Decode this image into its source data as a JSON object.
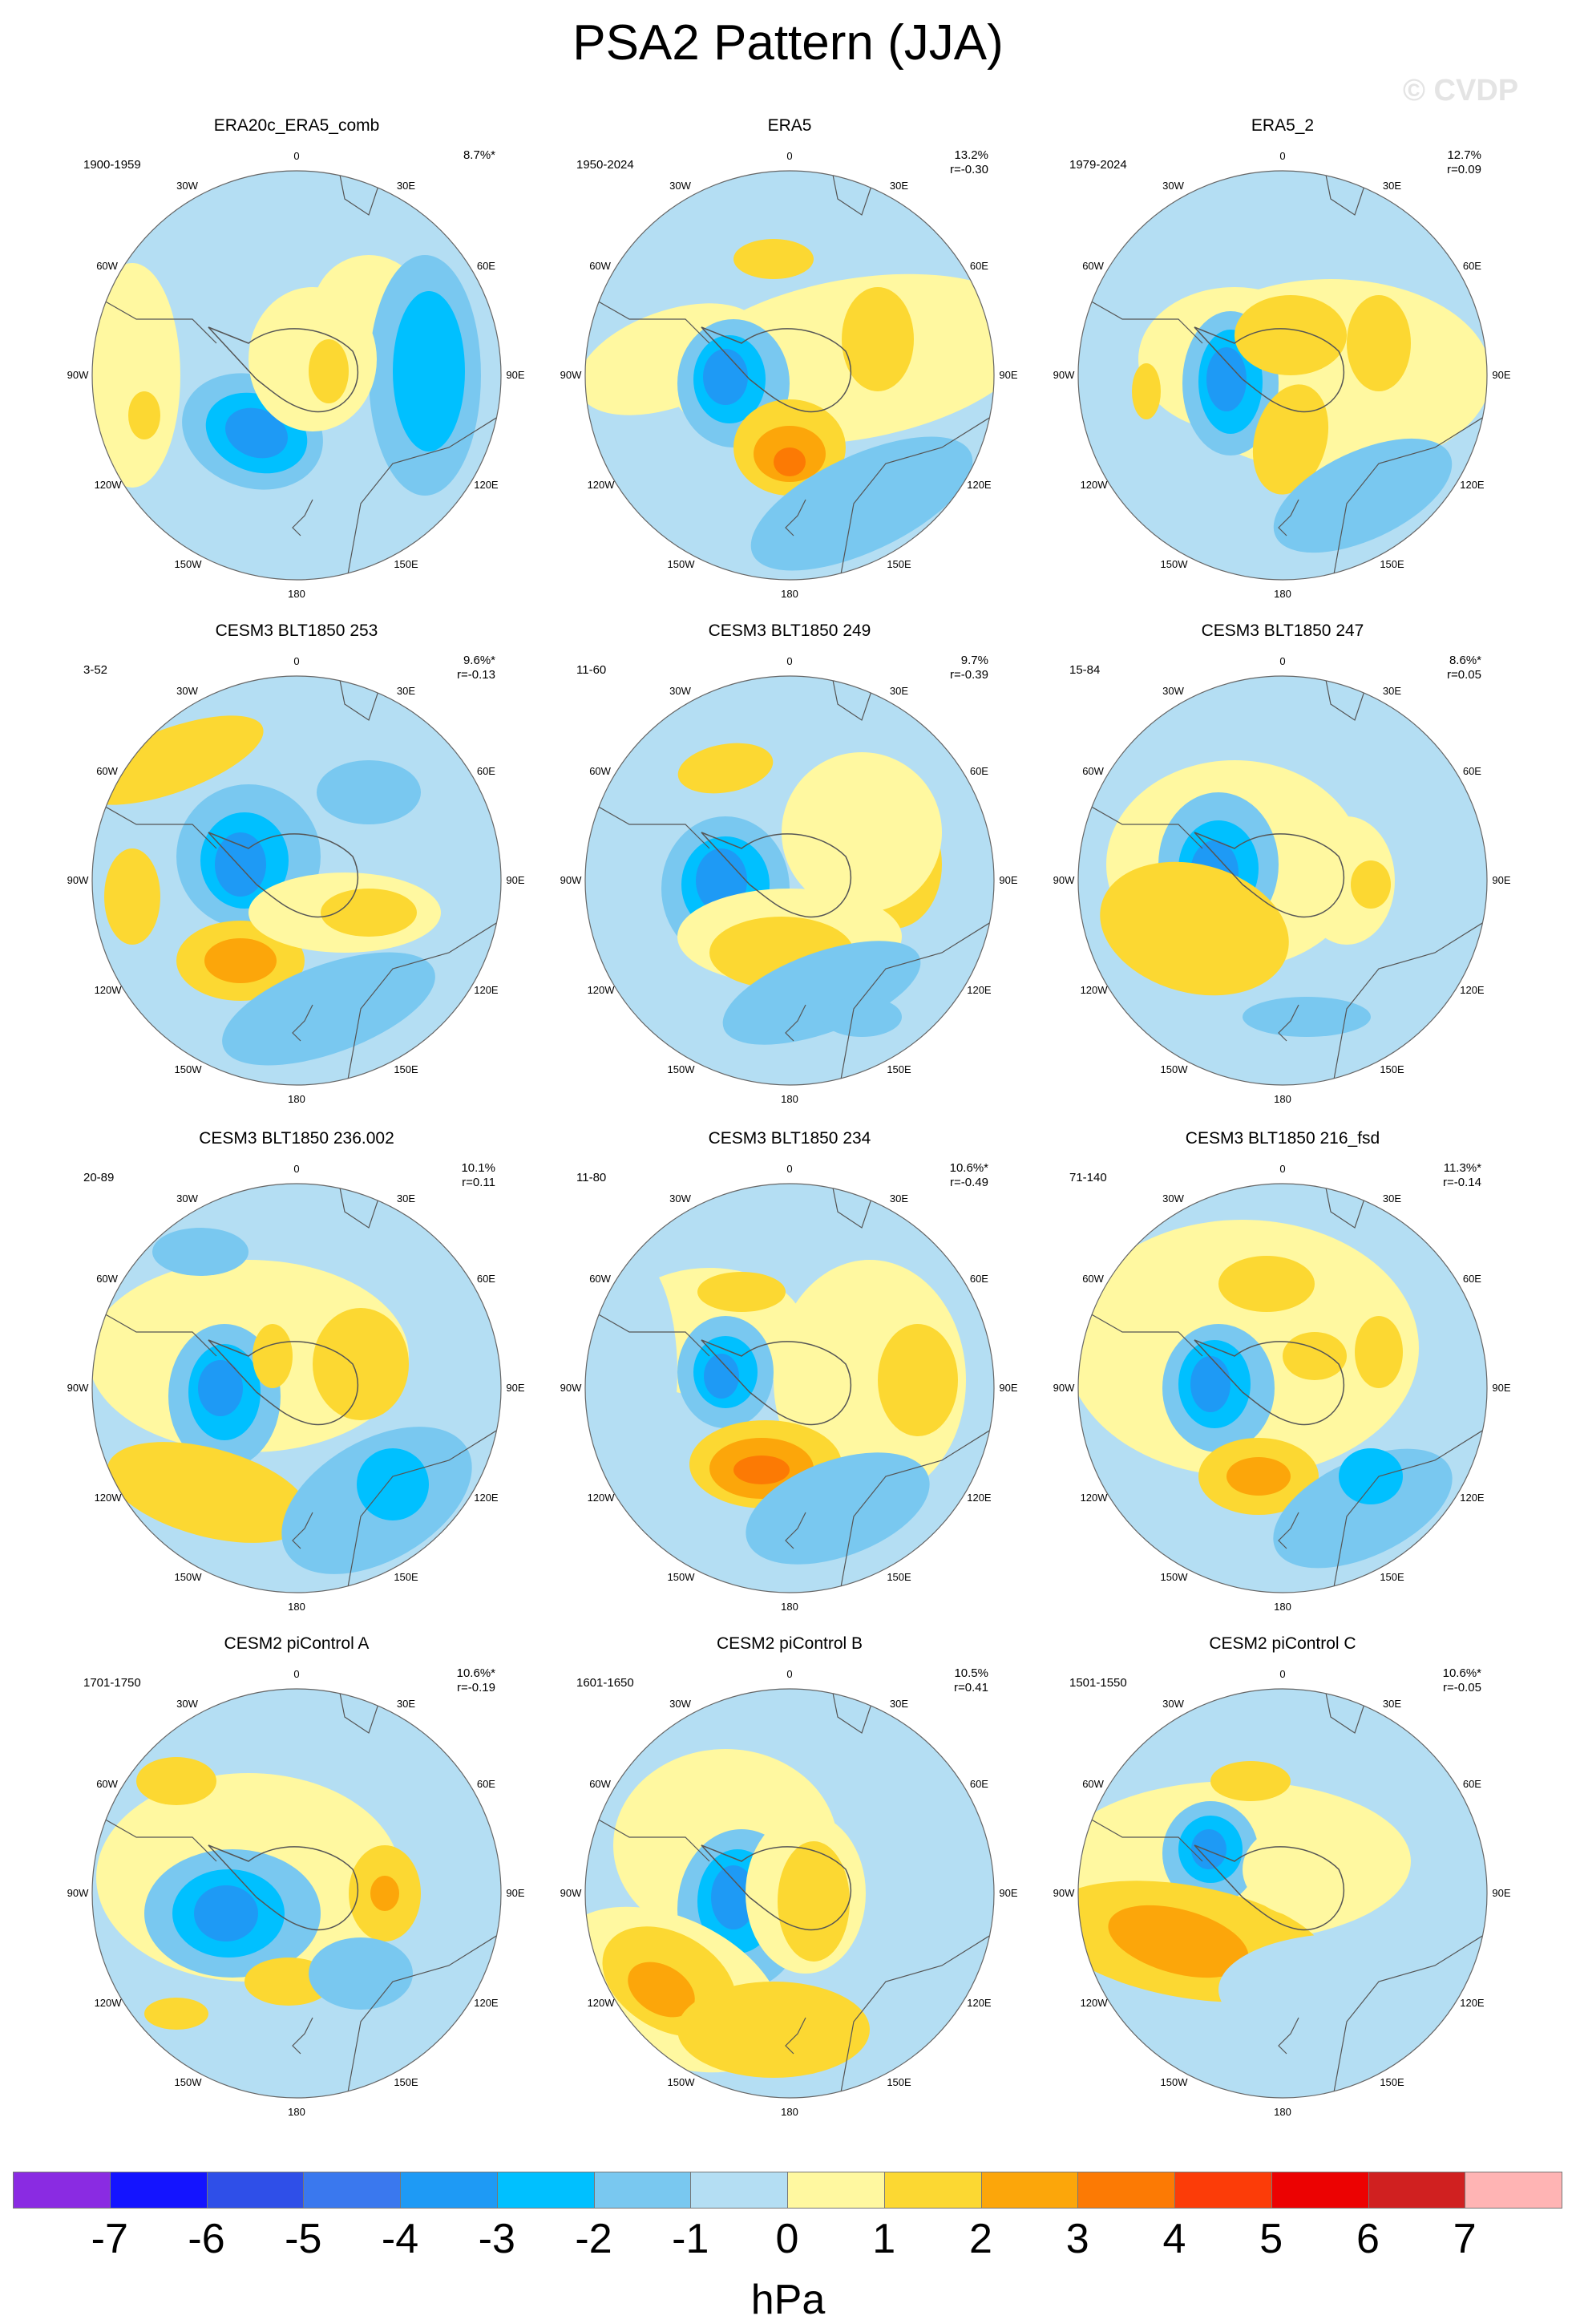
{
  "title": "PSA2 Pattern (JJA)",
  "watermark": "© CVDP",
  "lon_labels": [
    "0",
    "30E",
    "60E",
    "90E",
    "120E",
    "150E",
    "180",
    "150W",
    "120W",
    "90W",
    "60W",
    "30W"
  ],
  "colors": {
    "neg7": "#8a2be2",
    "neg6": "#1414ff",
    "neg5": "#2f4fe8",
    "neg4": "#3a78ee",
    "neg3": "#1e9af5",
    "neg2": "#00c0ff",
    "neg1": "#79c8f0",
    "neg0": "#b4def3",
    "pos0": "#fff8a0",
    "pos1": "#fcd832",
    "pos2": "#fca60a",
    "pos3": "#fc7a04",
    "pos4": "#fc3c08",
    "pos5": "#ec0202",
    "pos6": "#d02020",
    "pos7": "#ffb4b4",
    "coast": "#555555"
  },
  "panels": [
    {
      "title": "ERA20c_ERA5_comb",
      "years": "1900-1959",
      "pct": "8.7%*",
      "r": ""
    },
    {
      "title": "ERA5",
      "years": "1950-2024",
      "pct": "13.2%",
      "r": "r=-0.30"
    },
    {
      "title": "ERA5_2",
      "years": "1979-2024",
      "pct": "12.7%",
      "r": "r=0.09"
    },
    {
      "title": "CESM3 BLT1850 253",
      "years": "3-52",
      "pct": "9.6%*",
      "r": "r=-0.13"
    },
    {
      "title": "CESM3 BLT1850 249",
      "years": "11-60",
      "pct": "9.7%",
      "r": "r=-0.39"
    },
    {
      "title": "CESM3 BLT1850 247",
      "years": "15-84",
      "pct": "8.6%*",
      "r": "r=0.05"
    },
    {
      "title": "CESM3 BLT1850 236.002",
      "years": "20-89",
      "pct": "10.1%",
      "r": "r=0.11"
    },
    {
      "title": "CESM3 BLT1850 234",
      "years": "11-80",
      "pct": "10.6%*",
      "r": "r=-0.49"
    },
    {
      "title": "CESM3 BLT1850 216_fsd",
      "years": "71-140",
      "pct": "11.3%*",
      "r": "r=-0.14"
    },
    {
      "title": "CESM2 piControl A",
      "years": "1701-1750",
      "pct": "10.6%*",
      "r": "r=-0.19"
    },
    {
      "title": "CESM2 piControl B",
      "years": "1601-1650",
      "pct": "10.5%",
      "r": "r=0.41"
    },
    {
      "title": "CESM2 piControl C",
      "years": "1501-1550",
      "pct": "10.6%*",
      "r": "r=-0.05"
    }
  ],
  "colorbar": {
    "labels": [
      "-7",
      "-6",
      "-5",
      "-4",
      "-3",
      "-2",
      "-1",
      "0",
      "1",
      "2",
      "3",
      "4",
      "5",
      "6",
      "7"
    ],
    "unit": "hPa"
  }
}
